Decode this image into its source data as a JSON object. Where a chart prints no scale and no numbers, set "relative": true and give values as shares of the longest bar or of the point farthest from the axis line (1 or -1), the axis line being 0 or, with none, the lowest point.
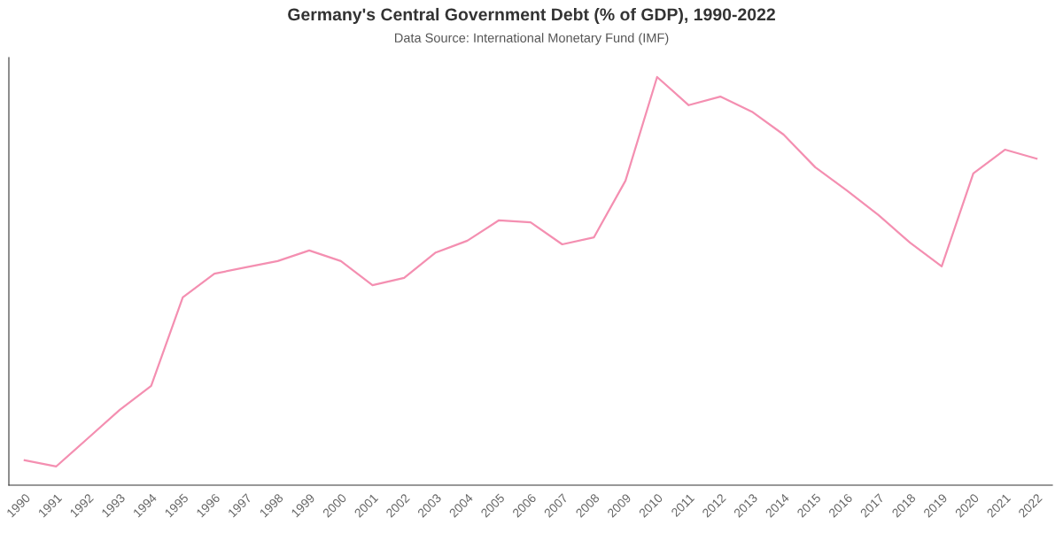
{
  "chart_data": {
    "type": "line",
    "title": "Germany's Central Government Debt (% of GDP), 1990-2022",
    "subtitle": "Data Source: International Monetary Fund (IMF)",
    "categories": [
      "1990",
      "1991",
      "1992",
      "1993",
      "1994",
      "1995",
      "1996",
      "1997",
      "1998",
      "1999",
      "2000",
      "2001",
      "2002",
      "2003",
      "2004",
      "2005",
      "2006",
      "2007",
      "2008",
      "2009",
      "2010",
      "2011",
      "2012",
      "2013",
      "2014",
      "2015",
      "2016",
      "2017",
      "2018",
      "2019",
      "2020",
      "2021",
      "2022"
    ],
    "relative": true,
    "series": [
      {
        "color": "#f48fb1",
        "values": [
          0.061,
          0.046,
          0.115,
          0.184,
          0.243,
          0.46,
          0.518,
          0.534,
          0.549,
          0.575,
          0.549,
          0.49,
          0.508,
          0.57,
          0.599,
          0.649,
          0.644,
          0.59,
          0.607,
          0.746,
          1,
          0.931,
          0.952,
          0.915,
          0.859,
          0.779,
          0.722,
          0.662,
          0.594,
          0.536,
          0.764,
          0.822,
          0.8
        ]
      }
    ],
    "grid": false,
    "legend": false,
    "marker": "none",
    "line_style": "solid"
  }
}
